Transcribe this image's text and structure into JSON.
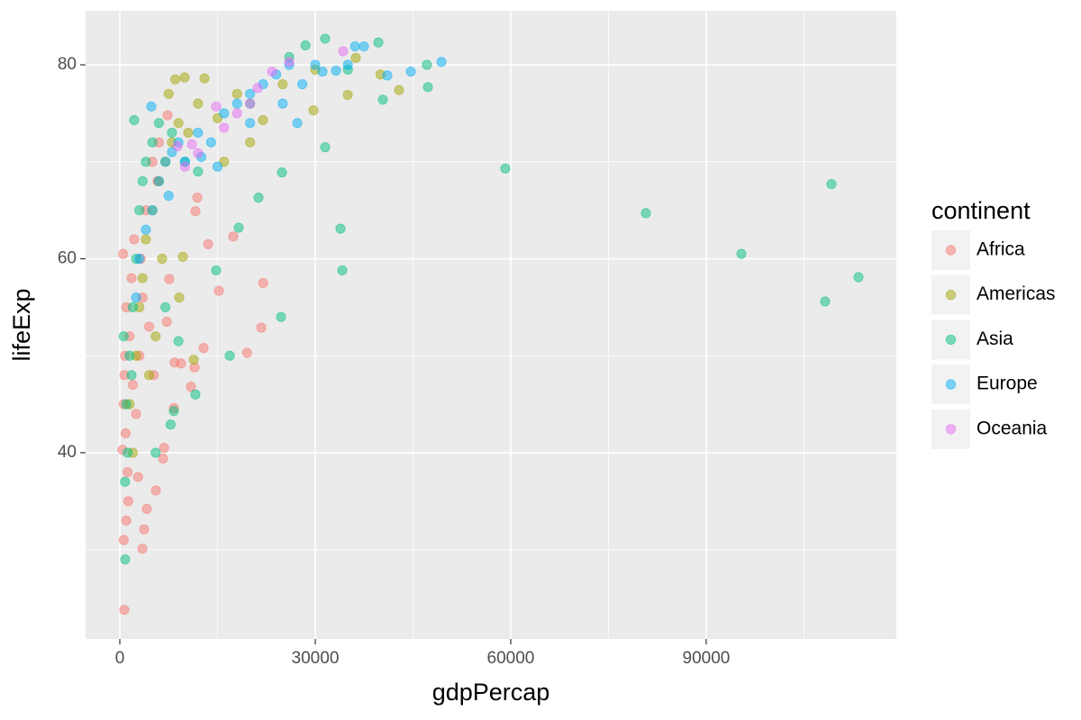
{
  "chart_data": {
    "type": "scatter",
    "x_label": "gdpPercap",
    "y_label": "lifeExp",
    "legend_title": "continent",
    "legend_position": "right",
    "xlim": [
      -5254,
      119180
    ],
    "ylim": [
      20.79,
      85.57
    ],
    "xticks": [
      0,
      30000,
      60000,
      90000
    ],
    "yticks": [
      40,
      60,
      80
    ],
    "grid": true,
    "opacity": 0.5,
    "series": [
      {
        "name": "Africa",
        "color": "#F8766D",
        "x": [
          690,
          3460,
          3730,
          4150,
          5530,
          6640,
          11610,
          11890,
          13550,
          17420,
          15200,
          22000,
          21710,
          19530,
          12860,
          11480,
          10920,
          7600,
          7330,
          410,
          600,
          800,
          1000,
          500,
          1200,
          900,
          700,
          1500,
          2000,
          2500,
          3000,
          1800,
          2200,
          3500,
          4000,
          5000,
          6000,
          4500,
          5200,
          6800,
          8400,
          8300,
          9400,
          2800,
          1300,
          600,
          1000,
          7200,
          5800,
          3200
        ],
        "values": [
          23.8,
          30.1,
          32.1,
          34.2,
          36.1,
          39.4,
          64.9,
          66.3,
          61.5,
          62.3,
          56.7,
          57.5,
          52.9,
          50.3,
          50.8,
          48.8,
          46.8,
          57.9,
          74.8,
          40.3,
          45,
          50,
          55,
          60.5,
          38,
          42,
          48,
          52,
          47,
          44,
          50,
          58,
          62,
          56,
          65,
          70,
          72,
          53,
          48,
          40.5,
          49.3,
          44.6,
          49.2,
          37.5,
          35,
          31,
          33,
          53.5,
          68,
          60
        ]
      },
      {
        "name": "Americas",
        "color": "#A3A500",
        "x": [
          9950,
          42860,
          36220,
          34980,
          29720,
          21980,
          9680,
          9120,
          11340,
          1500,
          2500,
          3000,
          3500,
          4000,
          5000,
          6000,
          7000,
          8000,
          2000,
          4500,
          6500,
          9000,
          12000,
          15000,
          18000,
          25000,
          40000,
          30000,
          7500,
          8500,
          13000,
          20000,
          5500,
          10500,
          16000
        ],
        "values": [
          78.7,
          77.4,
          80.7,
          76.9,
          75.3,
          74.3,
          60.2,
          56,
          49.6,
          45,
          50,
          55,
          58,
          62,
          65,
          68,
          70,
          72,
          40,
          48,
          60,
          74,
          76,
          74.5,
          77,
          78,
          79,
          79.5,
          77,
          78.5,
          78.6,
          72,
          52,
          73,
          70
        ]
      },
      {
        "name": "Asia",
        "color": "#00BF7D",
        "x": [
          59170,
          80740,
          95400,
          109220,
          108250,
          113370,
          33870,
          34150,
          24750,
          16870,
          11610,
          830,
          31520,
          47140,
          47280,
          39680,
          31520,
          40370,
          24890,
          21290,
          18250,
          14790,
          8300,
          1000,
          1500,
          2000,
          2500,
          3000,
          1200,
          800,
          3500,
          4000,
          5000,
          6000,
          8000,
          10000,
          12000,
          2200,
          600,
          1800,
          5500,
          7800,
          7000,
          9000,
          28500,
          26000,
          35000,
          20000
        ],
        "values": [
          69.3,
          64.7,
          60.5,
          67.7,
          55.6,
          58.1,
          63.1,
          58.8,
          54,
          50,
          46,
          29,
          71.5,
          80,
          77.7,
          82.3,
          82.7,
          76.4,
          68.9,
          66.3,
          63.2,
          58.8,
          44.3,
          45,
          50,
          55,
          60,
          65,
          40,
          37,
          68,
          70,
          72,
          74,
          73,
          70,
          69,
          74.3,
          52,
          48,
          40,
          42.9,
          55,
          51.5,
          82,
          80.8,
          79.5,
          76
        ]
      },
      {
        "name": "Europe",
        "color": "#00B0F6",
        "x": [
          49360,
          44660,
          41060,
          37470,
          36100,
          33180,
          31110,
          27240,
          4840,
          5000,
          6000,
          7000,
          8000,
          9000,
          10000,
          12000,
          14000,
          16000,
          18000,
          20000,
          22000,
          24000,
          26000,
          28000,
          30000,
          3000,
          4000,
          2500,
          12500,
          15000,
          7500,
          20000,
          25000,
          35000
        ],
        "values": [
          80.3,
          79.3,
          78.9,
          81.9,
          81.9,
          79.4,
          79.3,
          74,
          75.7,
          65,
          68,
          70,
          71,
          72,
          70,
          73,
          72,
          75,
          76,
          77,
          78,
          79,
          80,
          78,
          80,
          60,
          63,
          56,
          70.5,
          69.5,
          66.5,
          74,
          76,
          80
        ]
      },
      {
        "name": "Oceania",
        "color": "#E76BF3",
        "x": [
          34290,
          23370,
          21150,
          14790,
          11060,
          8850,
          10000,
          12000,
          16000,
          18000,
          26000,
          20000
        ],
        "values": [
          81.4,
          79.3,
          77.6,
          75.7,
          71.8,
          71.6,
          69.5,
          70.9,
          73.5,
          75,
          80.3,
          76
        ]
      }
    ]
  }
}
